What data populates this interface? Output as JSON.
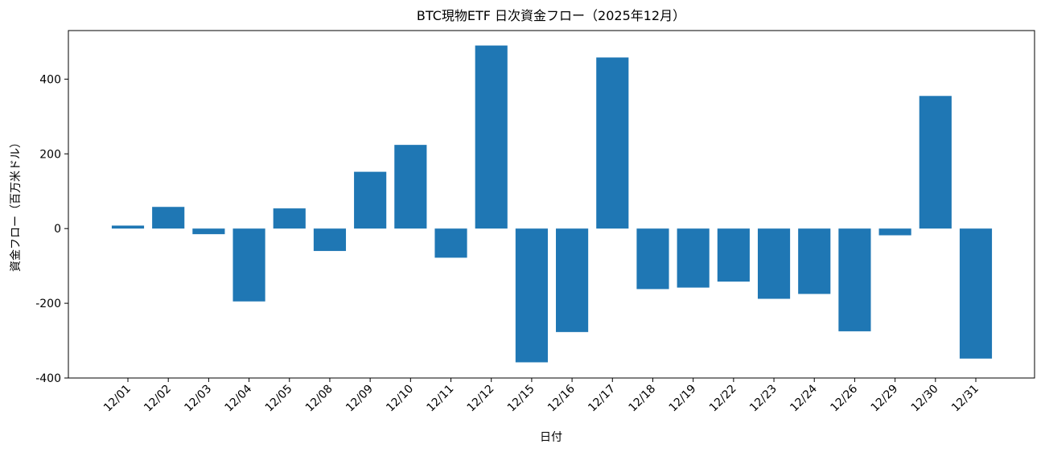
{
  "chart_data": {
    "type": "bar",
    "title": "BTC現物ETF 日次資金フロー（2025年12月）",
    "xlabel": "日付",
    "ylabel": "資金フロー（百万米ドル）",
    "categories": [
      "12/01",
      "12/02",
      "12/03",
      "12/04",
      "12/05",
      "12/08",
      "12/09",
      "12/10",
      "12/11",
      "12/12",
      "12/15",
      "12/16",
      "12/17",
      "12/18",
      "12/19",
      "12/22",
      "12/23",
      "12/24",
      "12/26",
      "12/29",
      "12/30",
      "12/31"
    ],
    "values": [
      8,
      58,
      -15,
      -195,
      54,
      -60,
      152,
      224,
      -78,
      490,
      -358,
      -277,
      458,
      -162,
      -158,
      -142,
      -188,
      -175,
      -275,
      -18,
      355,
      -348
    ],
    "ylim": [
      -400,
      530
    ],
    "yticks": [
      -400,
      -200,
      0,
      200,
      400
    ],
    "bar_color": "#1f77b4",
    "grid": false,
    "legend": "none"
  }
}
